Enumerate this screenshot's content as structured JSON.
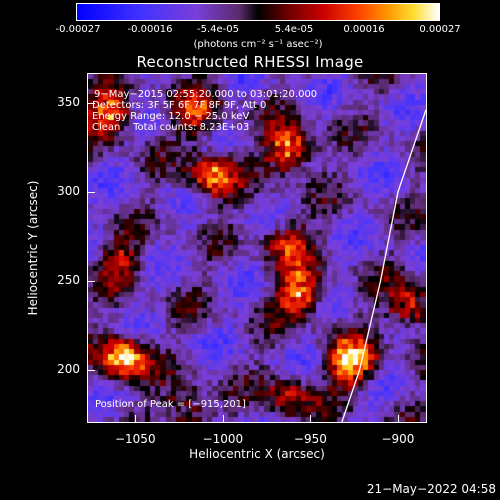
{
  "colorbar": {
    "ticks": [
      "-0.00027",
      "-0.00016",
      "-5.4e-05",
      "5.4e-05",
      "0.00016",
      "0.00027"
    ],
    "tick_values": [
      -0.00027,
      -0.00016,
      -5.4e-05,
      5.4e-05,
      0.00016,
      0.00027
    ],
    "range": [
      -0.00027,
      0.00027
    ],
    "unit_label": "(photons cm⁻² s⁻¹ asec⁻²)"
  },
  "chart_data": {
    "type": "heatmap",
    "title": "Reconstructed RHESSI Image",
    "xlabel": "Heliocentric X (arcsec)",
    "ylabel": "Heliocentric Y (arcsec)",
    "xlim": [
      -1077,
      -884
    ],
    "ylim": [
      171,
      366
    ],
    "x_ticks": [
      -1050,
      -1000,
      -950,
      -900
    ],
    "y_ticks": [
      200,
      250,
      300,
      350
    ],
    "x_tick_labels": [
      "−1050",
      "−1000",
      "−950",
      "−900"
    ],
    "y_tick_labels": [
      "200",
      "250",
      "300",
      "350"
    ],
    "colormap": [
      "#0000ff",
      "#7a3fd8",
      "#000000",
      "#cc0000",
      "#ff9900",
      "#ffffff"
    ],
    "bright_sources": [
      {
        "x": -1056,
        "y": 206,
        "level": 1.0
      },
      {
        "x": -926,
        "y": 204,
        "level": 1.0
      },
      {
        "x": -893,
        "y": 235,
        "level": 0.7
      },
      {
        "x": -962,
        "y": 324,
        "level": 0.9
      },
      {
        "x": -1064,
        "y": 343,
        "level": 0.8
      },
      {
        "x": -1006,
        "y": 308,
        "level": 0.75
      },
      {
        "x": -1013,
        "y": 343,
        "level": 0.6
      },
      {
        "x": -956,
        "y": 243,
        "level": 0.85
      },
      {
        "x": -963,
        "y": 271,
        "level": 0.55
      },
      {
        "x": -1020,
        "y": 178,
        "level": 0.5
      },
      {
        "x": -1058,
        "y": 260,
        "level": 0.45
      },
      {
        "x": -962,
        "y": 185,
        "level": 0.5
      }
    ],
    "limb": [
      [
        -932,
        171
      ],
      [
        -922,
        200
      ],
      [
        -910,
        250
      ],
      [
        -900,
        300
      ],
      [
        -884,
        346
      ]
    ],
    "peak_position": [
      -915,
      201
    ]
  },
  "info": {
    "line1": "9−May−2015 02:55:20.000 to 03:01:20.000",
    "line2": "Detectors: 3F 5F 6F 7F 8F 9F, Att 0",
    "line3": "Energy Range: 12.0 − 25.0 keV",
    "line4": "Clean    Total counts: 8.23E+03",
    "peak": "Position of Peak = [−915,201]"
  },
  "timestamp": "21−May−2022 04:58"
}
